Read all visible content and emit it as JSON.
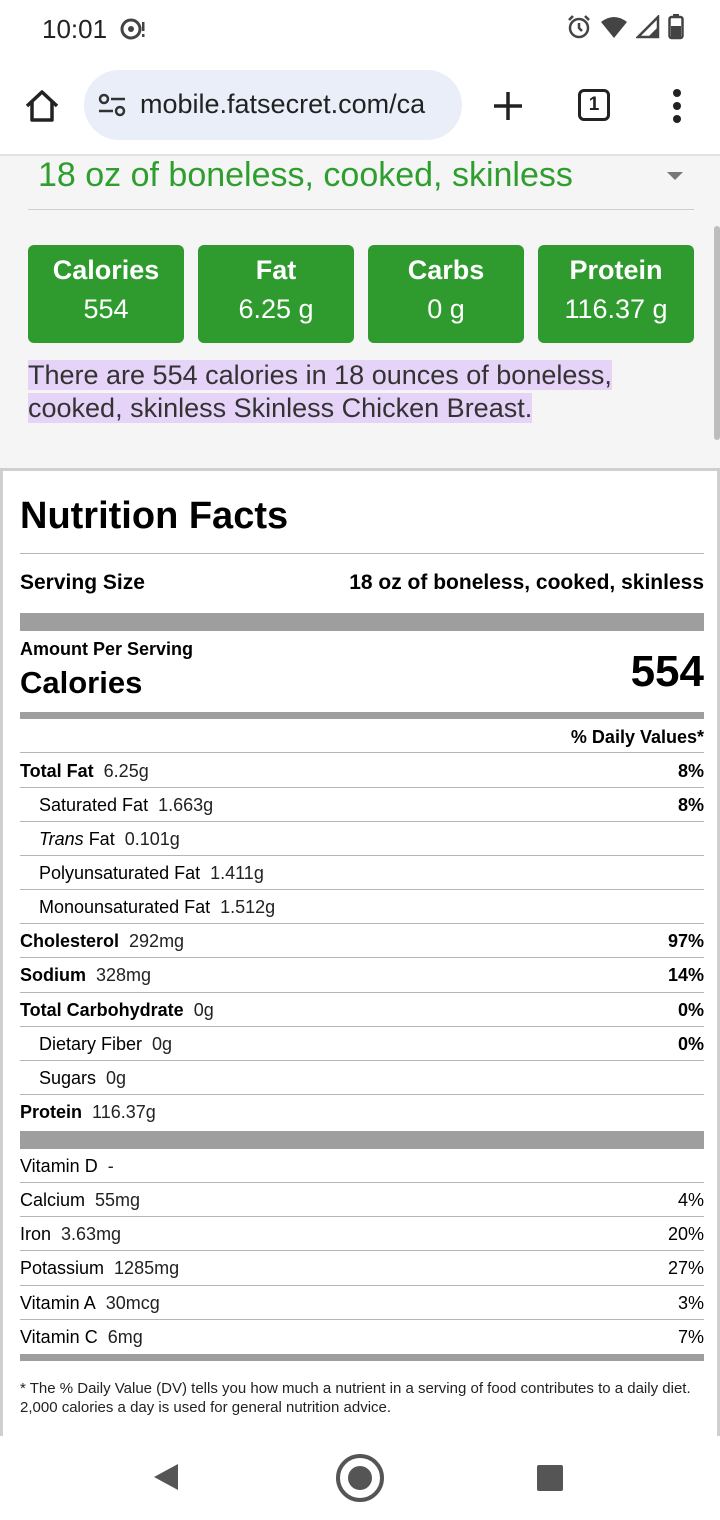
{
  "status_bar": {
    "time": "10:01"
  },
  "browser": {
    "url": "mobile.fatsecret.com/ca",
    "tab_count": "1"
  },
  "serving_selector": {
    "value": "18 oz of boneless, cooked, skinless"
  },
  "macros": [
    {
      "label": "Calories",
      "value": "554"
    },
    {
      "label": "Fat",
      "value": "6.25 g"
    },
    {
      "label": "Carbs",
      "value": "0 g"
    },
    {
      "label": "Protein",
      "value": "116.37 g"
    }
  ],
  "summary": "There are 554 calories in 18 ounces of boneless, cooked, skinless Skinless Chicken Breast.",
  "nutrition_facts": {
    "title": "Nutrition Facts",
    "serving_size_label": "Serving Size",
    "serving_size_value": "18 oz of boneless, cooked, skinless",
    "amount_per_serving": "Amount Per Serving",
    "calories_label": "Calories",
    "calories_value": "554",
    "daily_values_header": "% Daily Values*",
    "nutrients": [
      {
        "name": "Total Fat",
        "amount": "6.25g",
        "pct": "8%"
      },
      {
        "name": "Saturated Fat",
        "amount": "1.663g",
        "pct": "8%"
      },
      {
        "name_italic": "Trans",
        "name": " Fat",
        "amount": "0.101g",
        "pct": ""
      },
      {
        "name": "Polyunsaturated Fat",
        "amount": "1.411g",
        "pct": ""
      },
      {
        "name": "Monounsaturated Fat",
        "amount": "1.512g",
        "pct": ""
      },
      {
        "name": "Cholesterol",
        "amount": "292mg",
        "pct": "97%"
      },
      {
        "name": "Sodium",
        "amount": "328mg",
        "pct": "14%"
      },
      {
        "name": "Total Carbohydrate",
        "amount": "0g",
        "pct": "0%"
      },
      {
        "name": "Dietary Fiber",
        "amount": "0g",
        "pct": "0%"
      },
      {
        "name": "Sugars",
        "amount": "0g",
        "pct": ""
      },
      {
        "name": "Protein",
        "amount": "116.37g",
        "pct": ""
      }
    ],
    "vitamins": [
      {
        "name": "Vitamin D",
        "amount": "-",
        "pct": ""
      },
      {
        "name": "Calcium",
        "amount": "55mg",
        "pct": "4%"
      },
      {
        "name": "Iron",
        "amount": "3.63mg",
        "pct": "20%"
      },
      {
        "name": "Potassium",
        "amount": "1285mg",
        "pct": "27%"
      },
      {
        "name": "Vitamin A",
        "amount": "30mcg",
        "pct": "3%"
      },
      {
        "name": "Vitamin C",
        "amount": "6mg",
        "pct": "7%"
      }
    ],
    "footnote": "* The % Daily Value (DV) tells you how much a nutrient in a serving of food contributes to a daily diet. 2,000 calories a day is used for general nutrition advice."
  }
}
